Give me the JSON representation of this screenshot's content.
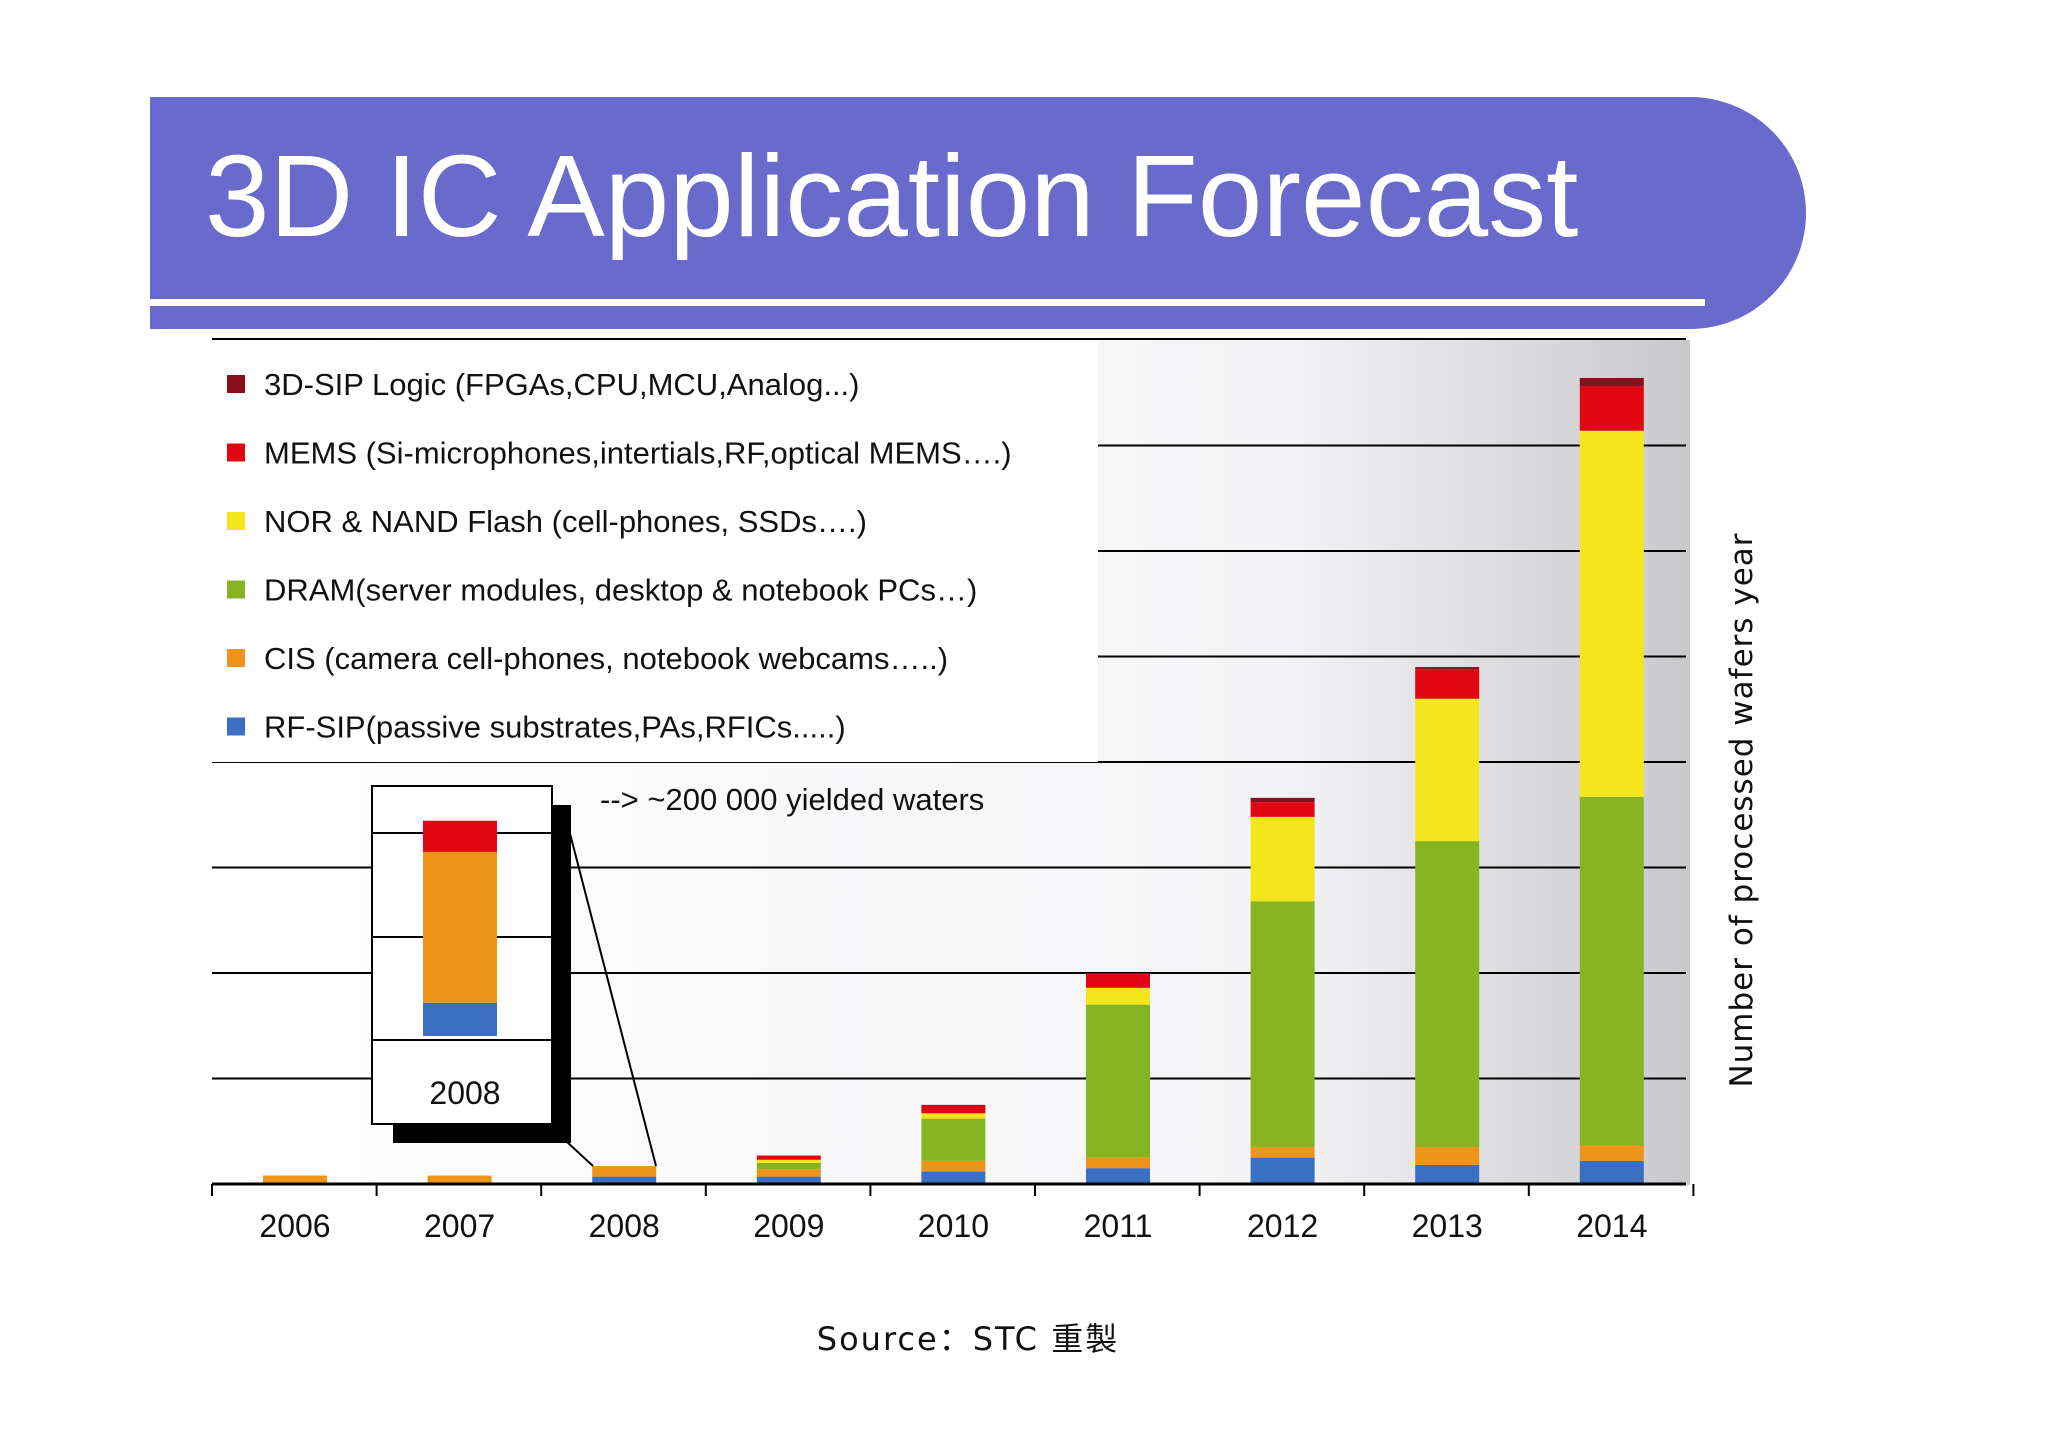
{
  "slide": {
    "title": "3D IC Application Forecast",
    "header_color": "#6A69CC",
    "source": "Source：STC 重製"
  },
  "chart_data": {
    "type": "bar",
    "stacked": true,
    "title": "",
    "xlabel": "",
    "ylabel": "Number of processed wafers year",
    "categories": [
      "2006",
      "2007",
      "2008",
      "2009",
      "2010",
      "2011",
      "2012",
      "2013",
      "2014"
    ],
    "ylim": [
      0,
      8
    ],
    "grid": true,
    "legend_position": "top-left",
    "series": [
      {
        "name": "RF-SIP(passive substrates,PAs,RFICs.....)",
        "color": "#3B6FC1",
        "values": [
          0,
          0,
          0.07,
          0.07,
          0.12,
          0.15,
          0.25,
          0.18,
          0.22
        ]
      },
      {
        "name": "CIS (camera cell-phones, notebook webcams…..)",
        "color": "#EE9419",
        "values": [
          0.08,
          0.08,
          0.1,
          0.07,
          0.1,
          0.1,
          0.1,
          0.17,
          0.15
        ]
      },
      {
        "name": "DRAM(server modules, desktop & notebook PCs…)",
        "color": "#86B423",
        "values": [
          0,
          0,
          0,
          0.06,
          0.4,
          1.45,
          2.33,
          2.9,
          3.3
        ]
      },
      {
        "name": "NOR & NAND Flash (cell-phones, SSDs….)",
        "color": "#F4E61C",
        "values": [
          0,
          0,
          0,
          0.03,
          0.05,
          0.16,
          0.8,
          1.35,
          3.47
        ]
      },
      {
        "name": "MEMS (Si-microphones,intertials,RF,optical MEMS….)",
        "color": "#E10712",
        "values": [
          0,
          0,
          0,
          0.04,
          0.07,
          0.13,
          0.14,
          0.28,
          0.42
        ]
      },
      {
        "name": "3D-SIP Logic (FPGAs,CPU,MCU,Analog...)",
        "color": "#8B0E1C",
        "values": [
          0,
          0,
          0,
          0,
          0.01,
          0.01,
          0.04,
          0.02,
          0.08
        ]
      }
    ],
    "annotations": [
      "--> ~200 000 yielded waters"
    ],
    "inset": {
      "category": "2008",
      "values": [
        0.32,
        1.45,
        0,
        0,
        0.3,
        0
      ]
    }
  }
}
